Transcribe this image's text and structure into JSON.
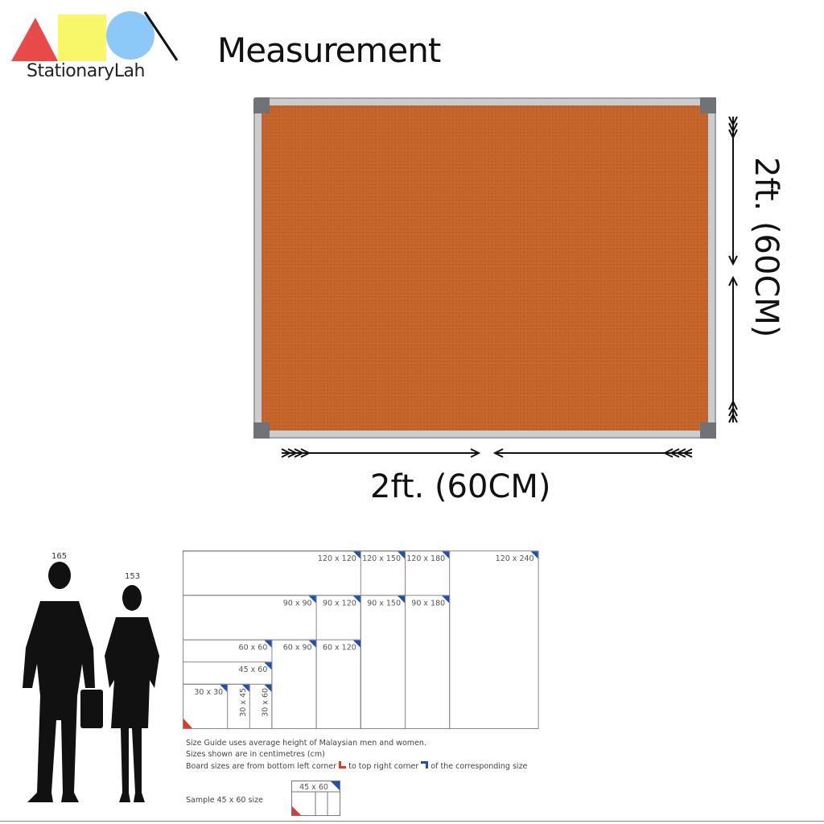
{
  "brand": {
    "name": "StationaryLah",
    "colors": {
      "triangle": "#e84a4a",
      "square": "#f8f76a",
      "circle": "#8cc8f8"
    }
  },
  "title": "Measurement",
  "board": {
    "type": "cork board",
    "cork_color": "#c6652b",
    "frame_color": "#c9cdd0",
    "width_label": "2ft. (60CM)",
    "height_label": "2ft. (60CM)"
  },
  "size_guide": {
    "people": [
      {
        "label": "165",
        "kind": "man"
      },
      {
        "label": "153",
        "kind": "woman"
      }
    ],
    "sizes": [
      {
        "label": "120 x 120",
        "h": 120,
        "w": 120
      },
      {
        "label": "120 x 150",
        "h": 120,
        "w": 150
      },
      {
        "label": "120 x 180",
        "h": 120,
        "w": 180
      },
      {
        "label": "120 x 240",
        "h": 120,
        "w": 240
      },
      {
        "label": "90 x 90",
        "h": 90,
        "w": 90
      },
      {
        "label": "90 x 120",
        "h": 90,
        "w": 120
      },
      {
        "label": "90 x 150",
        "h": 90,
        "w": 150
      },
      {
        "label": "90 x 180",
        "h": 90,
        "w": 180
      },
      {
        "label": "60 x 60",
        "h": 60,
        "w": 60
      },
      {
        "label": "60 x 90",
        "h": 60,
        "w": 90
      },
      {
        "label": "60 x 120",
        "h": 60,
        "w": 120
      },
      {
        "label": "45 x 60",
        "h": 45,
        "w": 60
      },
      {
        "label": "30 x 30",
        "h": 30,
        "w": 30
      },
      {
        "label": "30 x 45",
        "h": 30,
        "w": 45,
        "vertical": true
      },
      {
        "label": "30 x 60",
        "h": 30,
        "w": 60,
        "vertical": true
      }
    ],
    "notes": [
      "Size Guide uses average height of Malaysian men and women.",
      "Sizes shown are in centimetres (cm)",
      "Board sizes are from bottom left corner",
      "to top right corner",
      "of the corresponding size"
    ],
    "sample_label": "Sample 45 x 60 size",
    "sample_box_label": "45 x 60"
  }
}
